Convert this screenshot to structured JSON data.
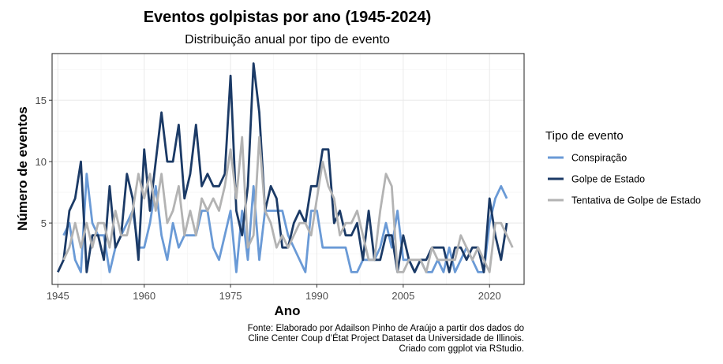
{
  "chart_data": {
    "type": "line",
    "title": "Eventos golpistas por ano (1945-2024)",
    "subtitle": "Distribuição anual por tipo de evento",
    "xlabel": "Ano",
    "ylabel": "Número de eventos",
    "xlim": [
      1944,
      2026
    ],
    "ylim": [
      0,
      18.8
    ],
    "x_ticks": [
      1945,
      1960,
      1975,
      1990,
      2005,
      2020
    ],
    "y_ticks": [
      5,
      10,
      15
    ],
    "grid": true,
    "legend": {
      "title": "Tipo de evento",
      "position": "right"
    },
    "series": [
      {
        "name": "Conspiração",
        "color": "#6a9ad6",
        "start_year": 1946,
        "values": [
          4,
          5,
          2,
          1,
          9,
          5,
          4,
          4,
          1,
          3,
          4,
          5,
          6,
          3,
          3,
          5,
          8,
          4,
          2,
          5,
          3,
          4,
          4,
          4,
          6,
          6,
          3,
          2,
          4,
          6,
          1,
          6,
          2,
          8,
          2,
          6,
          6,
          6,
          6,
          4,
          3,
          2,
          1,
          6,
          6,
          3,
          3,
          3,
          3,
          3,
          1,
          1,
          2,
          2,
          2,
          3,
          5,
          3,
          6,
          2,
          2,
          1,
          2,
          1,
          1,
          2,
          1,
          3,
          1,
          2,
          3,
          2,
          1,
          1,
          5,
          7,
          8,
          7
        ]
      },
      {
        "name": "Golpe de Estado",
        "color": "#1b3a66",
        "start_year": 1945,
        "values": [
          1,
          2,
          6,
          7,
          10,
          1,
          4,
          4,
          2,
          8,
          3,
          4,
          9,
          7,
          2,
          11,
          6,
          10,
          14,
          10,
          10,
          13,
          7,
          9,
          13,
          8,
          9,
          8,
          8,
          9,
          17,
          6,
          4,
          8,
          18,
          14,
          6,
          8,
          7,
          3,
          3,
          5,
          6,
          5,
          8,
          8,
          11,
          11,
          5,
          6,
          4,
          4,
          5,
          2,
          6,
          2,
          2,
          4,
          4,
          1,
          4,
          2,
          1,
          2,
          2,
          3,
          3,
          3,
          1,
          3,
          3,
          2,
          3,
          3,
          1,
          7,
          4,
          2,
          5
        ]
      },
      {
        "name": "Tentativa de Golpe de Estado",
        "color": "#b3b3b3",
        "start_year": 1946,
        "values": [
          2,
          3,
          5,
          3,
          5,
          3,
          5,
          5,
          3,
          6,
          4,
          4,
          6,
          9,
          7,
          9,
          6,
          9,
          5,
          6,
          8,
          4,
          6,
          4,
          7,
          6,
          7,
          6,
          8,
          11,
          7,
          12,
          3,
          4,
          12,
          6,
          5,
          3,
          4,
          3,
          4,
          5,
          5,
          4,
          7,
          10,
          8,
          7,
          4,
          5,
          5,
          6,
          4,
          2,
          2,
          6,
          9,
          8,
          1,
          1,
          2,
          2,
          2,
          1,
          3,
          2,
          2,
          2,
          2,
          4,
          3,
          2,
          3,
          2,
          1,
          5,
          5,
          4,
          3
        ]
      }
    ],
    "caption": [
      "Fonte: Elaborado por Adailson Pinho de Araújo a partir dos dados do",
      "Cline Center Coup d’État Project Dataset da Universidade de Illinois.",
      "Criado com ggplot via RStudio."
    ]
  }
}
